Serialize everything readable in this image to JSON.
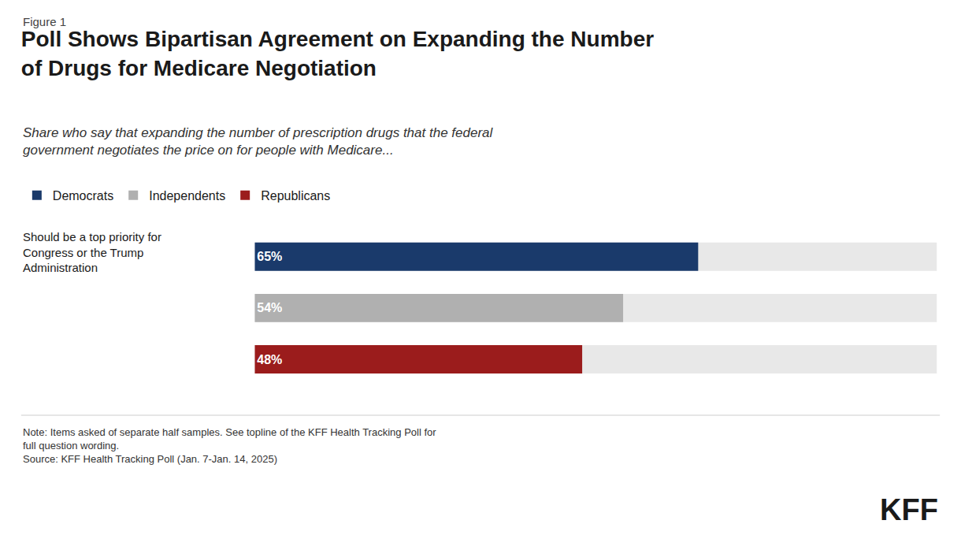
{
  "chart_data": {
    "type": "bar",
    "orientation": "horizontal",
    "label": "Figure 1",
    "title": "Poll Shows Bipartisan Agreement on Expanding the Number\nof Drugs for Medicare Negotiation",
    "subtitle": "Share who say that expanding the number of prescription drugs that the federal\ngovernment negotiates the price on for people with Medicare...",
    "categories": [
      "Democrats",
      "Independents",
      "Republicans"
    ],
    "values": [
      65,
      54,
      48
    ],
    "value_labels": [
      "65%",
      "54%",
      "48%"
    ],
    "colors": [
      "#1a3a6b",
      "#b0b0b0",
      "#9b1c1c"
    ],
    "annotations": [
      "Should be a top priority for\nCongress or the Trump\nAdministration"
    ],
    "note": "Note: Items asked of separate half samples. See topline of the KFF Health Tracking Poll for\nfull question wording.",
    "source": "Source: KFF Health Tracking Poll (Jan. 7-Jan. 14, 2025)",
    "logo": "KFF",
    "xlim": [
      0,
      100
    ],
    "data_labels": true,
    "tick_labels": false,
    "grid": false,
    "legend": "top left"
  }
}
